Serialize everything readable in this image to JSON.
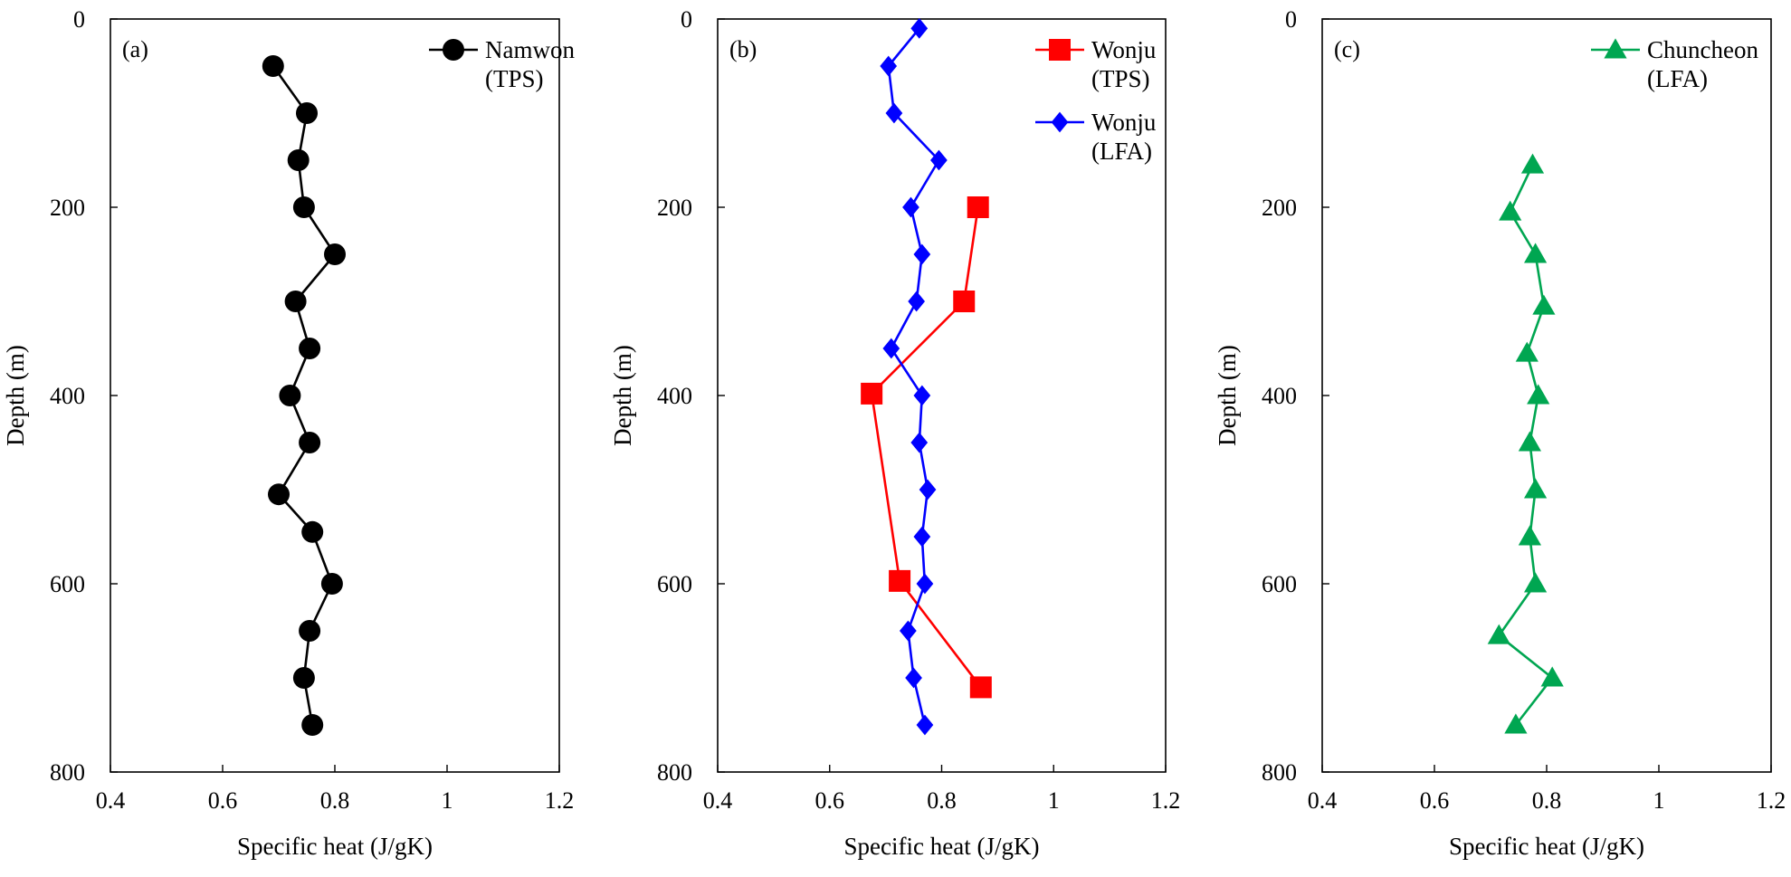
{
  "chart_data": [
    {
      "type": "line",
      "panel_label": "(a)",
      "xlabel": "Specific heat (J/gK)",
      "ylabel": "Depth (m)",
      "xlim": [
        0.4,
        1.2
      ],
      "ylim": [
        0,
        800
      ],
      "y_inverted": true,
      "xticks": [
        "0.4",
        "0.6",
        "0.8",
        "1",
        "1.2"
      ],
      "yticks": [
        "0",
        "200",
        "400",
        "600",
        "800"
      ],
      "legend_position": "top-right",
      "series": [
        {
          "name_line1": "Namwon",
          "name_line2": "(TPS)",
          "color": "#000000",
          "marker": "circle",
          "points": [
            {
              "x": 0.69,
              "y": 50
            },
            {
              "x": 0.75,
              "y": 100
            },
            {
              "x": 0.735,
              "y": 150
            },
            {
              "x": 0.745,
              "y": 200
            },
            {
              "x": 0.8,
              "y": 250
            },
            {
              "x": 0.73,
              "y": 300
            },
            {
              "x": 0.755,
              "y": 350
            },
            {
              "x": 0.72,
              "y": 400
            },
            {
              "x": 0.755,
              "y": 450
            },
            {
              "x": 0.7,
              "y": 505
            },
            {
              "x": 0.76,
              "y": 545
            },
            {
              "x": 0.795,
              "y": 600
            },
            {
              "x": 0.755,
              "y": 650
            },
            {
              "x": 0.745,
              "y": 700
            },
            {
              "x": 0.76,
              "y": 750
            }
          ]
        }
      ]
    },
    {
      "type": "line",
      "panel_label": "(b)",
      "xlabel": "Specific heat (J/gK)",
      "ylabel": "Depth (m)",
      "xlim": [
        0.4,
        1.2
      ],
      "ylim": [
        0,
        800
      ],
      "y_inverted": true,
      "xticks": [
        "0.4",
        "0.6",
        "0.8",
        "1",
        "1.2"
      ],
      "yticks": [
        "0",
        "200",
        "400",
        "600",
        "800"
      ],
      "legend_position": "top-right",
      "series": [
        {
          "name_line1": "Wonju",
          "name_line2": "(TPS)",
          "color": "#ff0000",
          "marker": "square",
          "points": [
            {
              "x": 0.865,
              "y": 200
            },
            {
              "x": 0.84,
              "y": 300
            },
            {
              "x": 0.675,
              "y": 398
            },
            {
              "x": 0.725,
              "y": 597
            },
            {
              "x": 0.87,
              "y": 710
            }
          ]
        },
        {
          "name_line1": "Wonju",
          "name_line2": "(LFA)",
          "color": "#0000ff",
          "marker": "diamond",
          "points": [
            {
              "x": 0.76,
              "y": 10
            },
            {
              "x": 0.705,
              "y": 50
            },
            {
              "x": 0.715,
              "y": 100
            },
            {
              "x": 0.795,
              "y": 150
            },
            {
              "x": 0.745,
              "y": 200
            },
            {
              "x": 0.765,
              "y": 250
            },
            {
              "x": 0.755,
              "y": 300
            },
            {
              "x": 0.71,
              "y": 350
            },
            {
              "x": 0.765,
              "y": 400
            },
            {
              "x": 0.76,
              "y": 450
            },
            {
              "x": 0.775,
              "y": 500
            },
            {
              "x": 0.765,
              "y": 550
            },
            {
              "x": 0.77,
              "y": 600
            },
            {
              "x": 0.74,
              "y": 650
            },
            {
              "x": 0.75,
              "y": 700
            },
            {
              "x": 0.77,
              "y": 750
            }
          ]
        }
      ]
    },
    {
      "type": "line",
      "panel_label": "(c)",
      "xlabel": "Specific heat (J/gK)",
      "ylabel": "Depth (m)",
      "xlim": [
        0.4,
        1.2
      ],
      "ylim": [
        0,
        800
      ],
      "y_inverted": true,
      "xticks": [
        "0.4",
        "0.6",
        "0.8",
        "1",
        "1.2"
      ],
      "yticks": [
        "0",
        "200",
        "400",
        "600",
        "800"
      ],
      "legend_position": "top-right",
      "series": [
        {
          "name_line1": "Chuncheon",
          "name_line2": "(LFA)",
          "color": "#00a651",
          "marker": "triangle",
          "points": [
            {
              "x": 0.775,
              "y": 155
            },
            {
              "x": 0.735,
              "y": 205
            },
            {
              "x": 0.78,
              "y": 250
            },
            {
              "x": 0.795,
              "y": 305
            },
            {
              "x": 0.765,
              "y": 355
            },
            {
              "x": 0.785,
              "y": 400
            },
            {
              "x": 0.77,
              "y": 450
            },
            {
              "x": 0.78,
              "y": 500
            },
            {
              "x": 0.77,
              "y": 550
            },
            {
              "x": 0.78,
              "y": 600
            },
            {
              "x": 0.715,
              "y": 655
            },
            {
              "x": 0.81,
              "y": 700
            },
            {
              "x": 0.745,
              "y": 750
            }
          ]
        }
      ]
    }
  ]
}
